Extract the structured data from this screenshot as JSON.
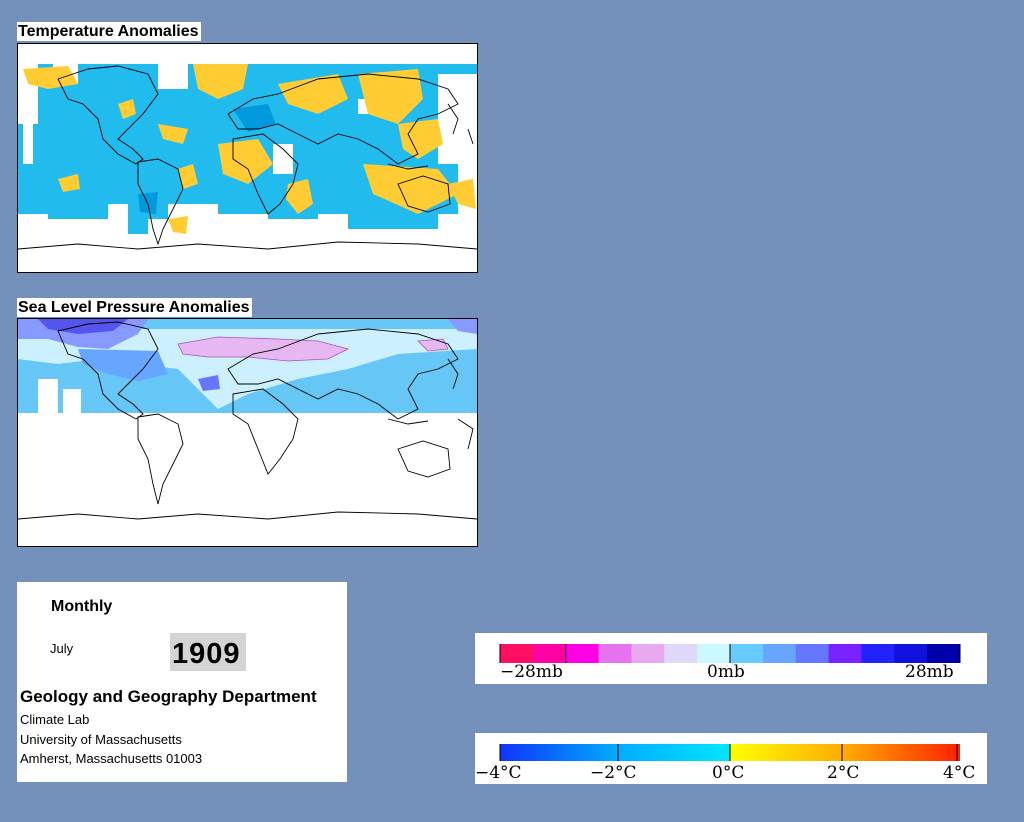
{
  "temperature_map": {
    "title": "Temperature Anomalies"
  },
  "pressure_map": {
    "title": "Sea Level Pressure Anomalies"
  },
  "info": {
    "frequency": "Monthly",
    "month": "July",
    "year": "1909",
    "department": "Geology and Geography Department",
    "lab": "Climate Lab",
    "university": "University of Massachusetts",
    "address": "Amherst, Massachusetts 01003"
  },
  "pressure_legend": {
    "labels": [
      "−28mb",
      "0mb",
      "28mb"
    ],
    "colors": [
      "#ff0f63",
      "#ff00a3",
      "#ff00e6",
      "#e672ef",
      "#e8a9ef",
      "#e0d8f8",
      "#ccf8ff",
      "#66ccff",
      "#66a6ff",
      "#6677ff",
      "#7722ff",
      "#2222ff",
      "#1111dd",
      "#0000aa"
    ]
  },
  "temperature_legend": {
    "labels": [
      "−4°C",
      "−2°C",
      "0°C",
      "2°C",
      "4°C"
    ],
    "colors": [
      "#1133ff",
      "#00aaff",
      "#00e6ff",
      "#ffff00",
      "#ffaa00",
      "#ff2200"
    ]
  },
  "colors": {
    "background": "#7391bb",
    "temp_cool": "#22bbee",
    "temp_warm": "#ffcc33",
    "slp_low": "#66c6f5",
    "slp_high": "#dda0ee"
  }
}
